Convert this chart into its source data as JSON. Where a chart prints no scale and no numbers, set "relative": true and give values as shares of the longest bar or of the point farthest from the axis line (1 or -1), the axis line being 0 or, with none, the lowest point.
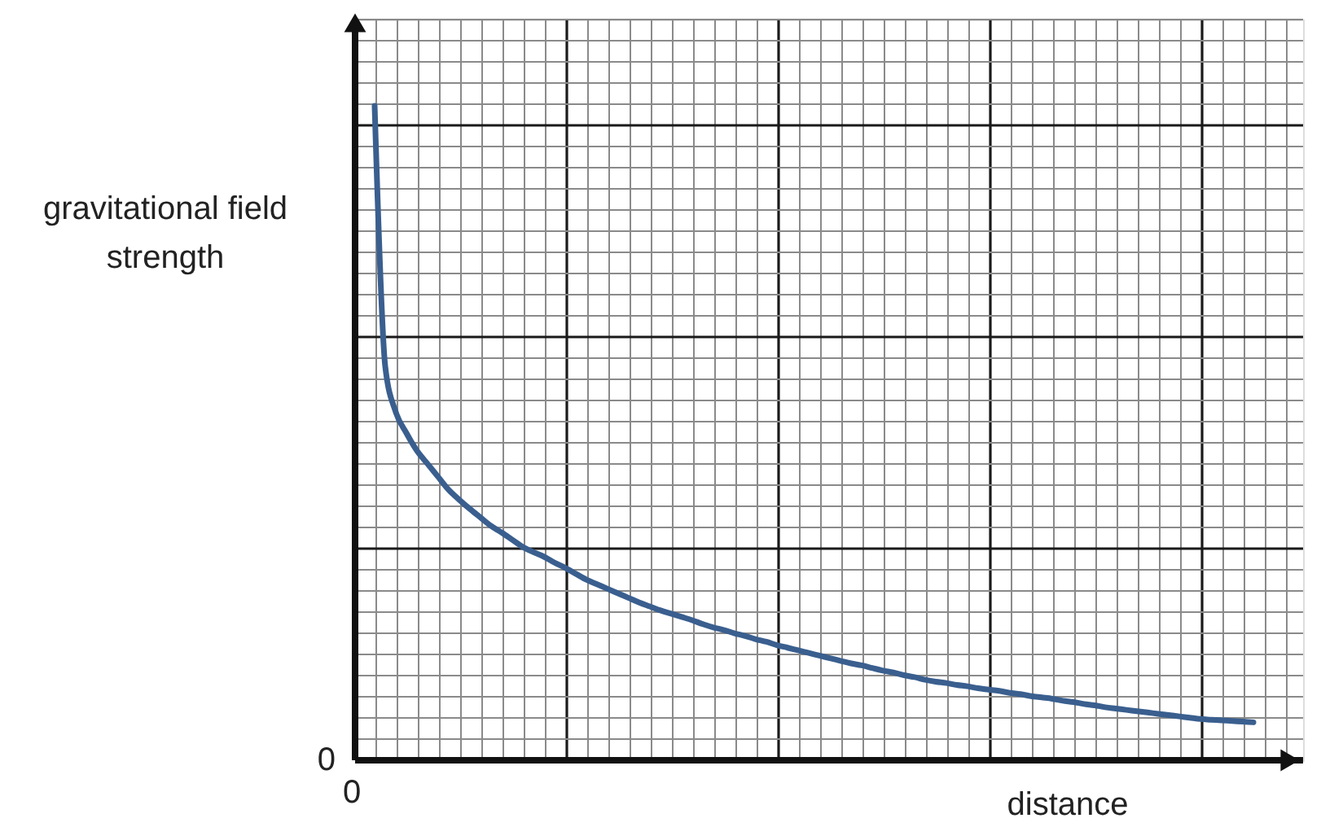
{
  "chart_data": {
    "type": "line",
    "relative": true,
    "xlabel": "distance",
    "ylabel": "gravitational field\nstrength",
    "grid": true,
    "annotations": [
      "0",
      "0"
    ],
    "categories": [
      null,
      null,
      null,
      null,
      null,
      null,
      null,
      null,
      null,
      null,
      null,
      null,
      null,
      null,
      null,
      null,
      null,
      null,
      null,
      null,
      null,
      null,
      null,
      null,
      null,
      null,
      null,
      null,
      null,
      null,
      null,
      null,
      null,
      null,
      null,
      null,
      null,
      null,
      null,
      null,
      null,
      null,
      null,
      null,
      null,
      null,
      null,
      null,
      null,
      null,
      null,
      null,
      null,
      null,
      null,
      null,
      null,
      null,
      null,
      null,
      null,
      null,
      null,
      null,
      null,
      null,
      null,
      null,
      null,
      null,
      null,
      null,
      null,
      null,
      null,
      null,
      null,
      null,
      null,
      null,
      null,
      null,
      null,
      null
    ],
    "series": [
      {
        "color": "#3a5f8f",
        "values": [
          1.0,
          0.602,
          0.532,
          0.5,
          0.473,
          0.453,
          0.433,
          0.413,
          0.398,
          0.384,
          0.371,
          0.358,
          0.348,
          0.337,
          0.326,
          0.318,
          0.311,
          0.302,
          0.294,
          0.285,
          0.276,
          0.269,
          0.262,
          0.255,
          0.248,
          0.241,
          0.235,
          0.229,
          0.224,
          0.219,
          0.214,
          0.208,
          0.203,
          0.199,
          0.194,
          0.19,
          0.185,
          0.181,
          0.176,
          0.172,
          0.168,
          0.164,
          0.16,
          0.156,
          0.152,
          0.148,
          0.145,
          0.141,
          0.137,
          0.134,
          0.13,
          0.127,
          0.123,
          0.12,
          0.118,
          0.115,
          0.113,
          0.11,
          0.108,
          0.106,
          0.103,
          0.101,
          0.098,
          0.096,
          0.094,
          0.091,
          0.089,
          0.086,
          0.084,
          0.081,
          0.079,
          0.077,
          0.075,
          0.073,
          0.071,
          0.069,
          0.067,
          0.065,
          0.063,
          0.062,
          0.061,
          0.06,
          0.059,
          0.058
        ]
      }
    ]
  }
}
